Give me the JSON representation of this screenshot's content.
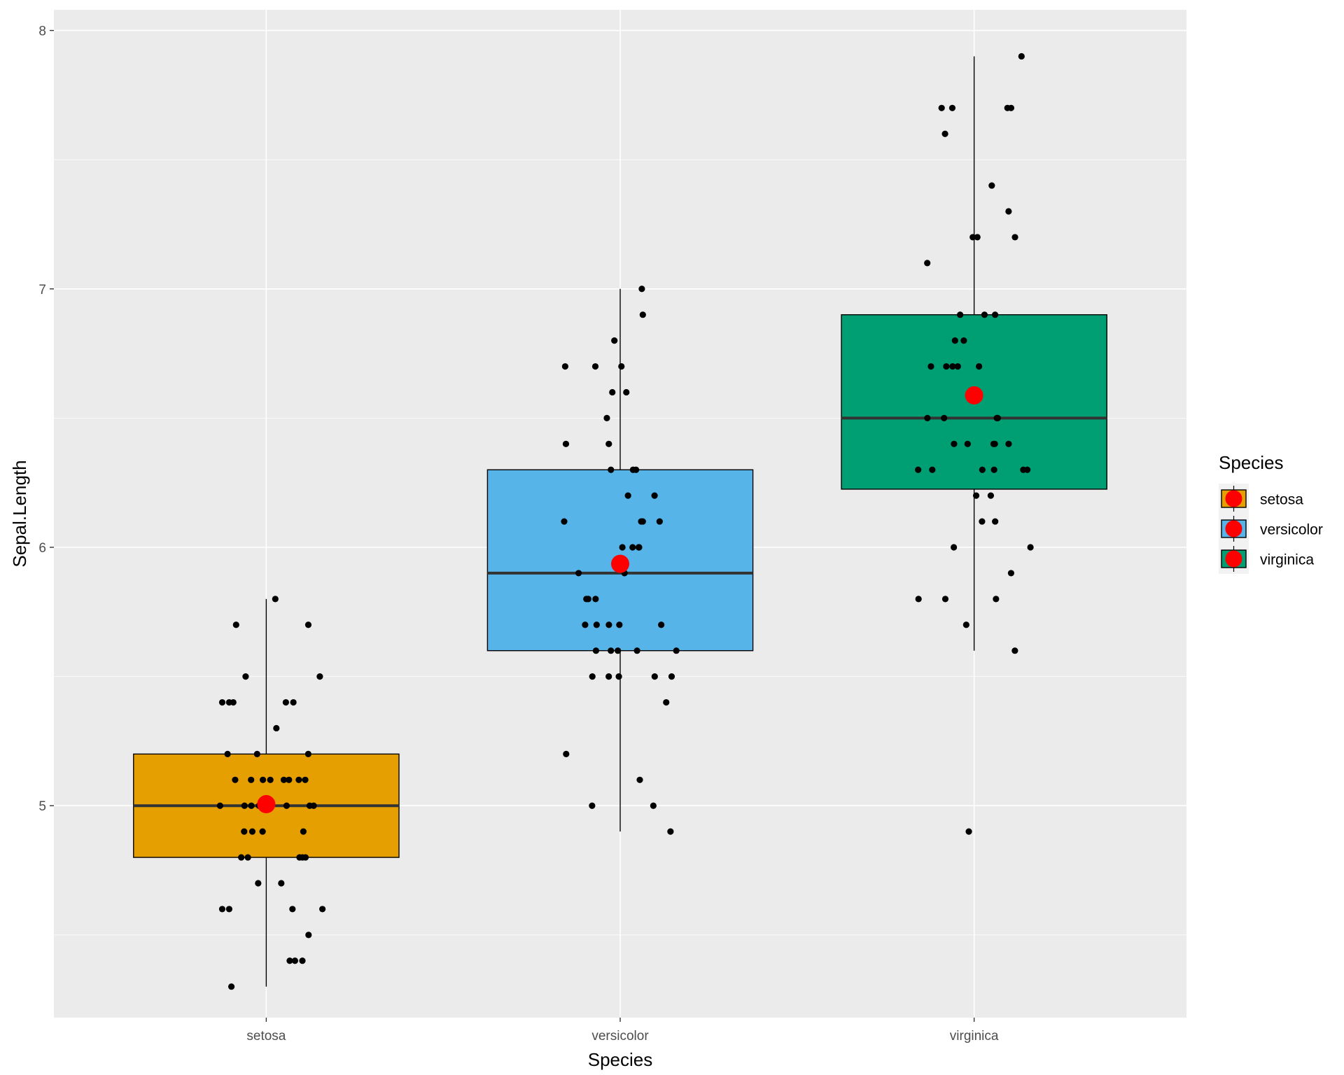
{
  "chart_data": {
    "type": "boxplot",
    "xlabel": "Species",
    "ylabel": "Sepal.Length",
    "categories": [
      "setosa",
      "versicolor",
      "virginica"
    ],
    "ylim": [
      4.18,
      8.08
    ],
    "yticks": [
      5,
      6,
      7,
      8
    ],
    "grid": true,
    "legend": {
      "title": "Species",
      "position": "right",
      "entries": [
        "setosa",
        "versicolor",
        "virginica"
      ]
    },
    "colors": {
      "setosa": "#E69F00",
      "versicolor": "#56B4E9",
      "virginica": "#009E73",
      "mean_point": "#FF0000",
      "jitter_point": "#000000",
      "panel_background": "#EBEBEB",
      "grid": "#FFFFFF"
    },
    "boxes": [
      {
        "name": "setosa",
        "min": 4.3,
        "q1": 4.8,
        "median": 5.0,
        "q3": 5.2,
        "max": 5.8,
        "mean": 5.006
      },
      {
        "name": "versicolor",
        "min": 4.9,
        "q1": 5.6,
        "median": 5.9,
        "q3": 6.3,
        "max": 7.0,
        "mean": 5.936
      },
      {
        "name": "virginica",
        "min": 5.6,
        "q1": 6.225,
        "median": 6.5,
        "q3": 6.9,
        "max": 7.9,
        "mean": 6.588,
        "outliers": [
          4.9
        ]
      }
    ],
    "observations": {
      "setosa": [
        5.1,
        4.9,
        4.7,
        4.6,
        5.0,
        5.4,
        4.6,
        5.0,
        4.4,
        4.9,
        5.4,
        4.8,
        4.8,
        4.3,
        5.8,
        5.7,
        5.4,
        5.1,
        5.7,
        5.1,
        5.4,
        5.1,
        4.6,
        5.1,
        4.8,
        5.0,
        5.0,
        5.2,
        5.2,
        4.7,
        4.8,
        5.4,
        5.2,
        5.5,
        4.9,
        5.0,
        5.5,
        4.9,
        4.4,
        5.1,
        5.0,
        4.5,
        4.4,
        5.0,
        5.1,
        4.8,
        5.1,
        4.6,
        5.3,
        5.0
      ],
      "versicolor": [
        7.0,
        6.4,
        6.9,
        5.5,
        6.5,
        5.7,
        6.3,
        4.9,
        6.6,
        5.2,
        5.0,
        5.9,
        6.0,
        6.1,
        5.6,
        6.7,
        5.6,
        5.8,
        6.2,
        5.6,
        5.9,
        6.1,
        6.3,
        6.1,
        6.4,
        6.6,
        6.8,
        6.7,
        6.0,
        5.7,
        5.5,
        5.5,
        5.8,
        6.0,
        5.4,
        6.0,
        6.7,
        6.3,
        5.6,
        5.5,
        5.5,
        6.1,
        5.8,
        5.0,
        5.6,
        5.7,
        5.7,
        6.2,
        5.1,
        5.7
      ],
      "virginica": [
        6.3,
        5.8,
        7.1,
        6.3,
        6.5,
        7.6,
        4.9,
        7.3,
        6.7,
        7.2,
        6.5,
        6.4,
        6.8,
        5.7,
        5.8,
        6.4,
        6.5,
        7.7,
        7.7,
        6.0,
        6.9,
        5.6,
        7.7,
        6.3,
        6.7,
        7.2,
        6.2,
        6.1,
        6.4,
        7.2,
        7.4,
        7.9,
        6.4,
        6.3,
        6.1,
        7.7,
        6.3,
        6.4,
        6.0,
        6.9,
        6.7,
        6.9,
        5.8,
        6.8,
        6.7,
        6.7,
        6.3,
        6.5,
        6.2,
        5.9
      ]
    }
  }
}
